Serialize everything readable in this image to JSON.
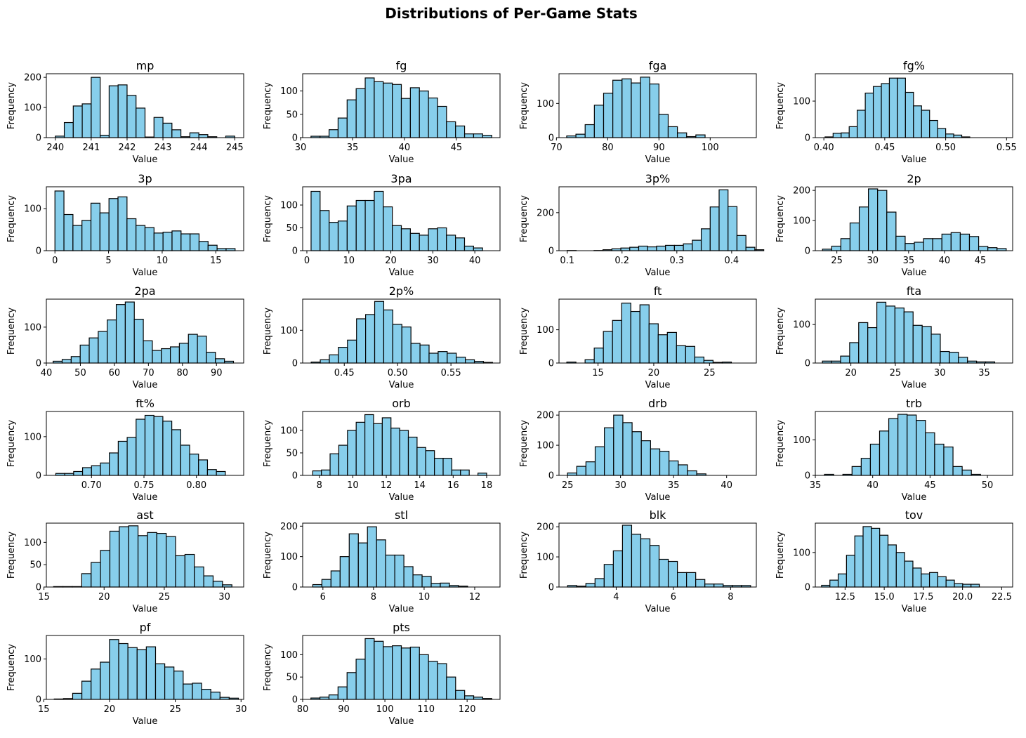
{
  "chart_data": {
    "title": "Distributions of Per-Game Stats",
    "type": "histogram-grid",
    "panels": [
      {
        "title": "mp",
        "xlabel": "Value",
        "ylabel": "Frequency",
        "xlim": [
          239.75,
          245.25
        ],
        "ylim": [
          0,
          212
        ],
        "xticks": [
          240,
          241,
          242,
          243,
          244,
          245
        ],
        "xtick_labels": [
          "240",
          "241",
          "242",
          "243",
          "244",
          "245"
        ],
        "yticks": [
          0,
          100,
          200
        ],
        "bin_start": 240.0,
        "bin_width": 0.25,
        "counts": [
          5,
          50,
          105,
          112,
          200,
          8,
          172,
          175,
          140,
          98,
          2,
          67,
          48,
          26,
          3,
          16,
          10,
          3,
          0,
          5
        ]
      },
      {
        "title": "fg",
        "xlabel": "Value",
        "ylabel": "Frequency",
        "xlim": [
          30.2,
          49.2
        ],
        "ylim": [
          0,
          137
        ],
        "xticks": [
          30,
          35,
          40,
          45
        ],
        "xtick_labels": [
          "30",
          "35",
          "40",
          "45"
        ],
        "yticks": [
          0,
          50,
          100
        ],
        "bin_start": 31.0,
        "bin_width": 0.87,
        "counts": [
          3,
          3,
          17,
          42,
          81,
          105,
          128,
          120,
          117,
          114,
          84,
          107,
          100,
          85,
          67,
          34,
          25,
          8,
          8,
          5
        ]
      },
      {
        "title": "fga",
        "xlabel": "Value",
        "ylabel": "Frequency",
        "xlim": [
          70.5,
          109
        ],
        "ylim": [
          0,
          187
        ],
        "xticks": [
          70,
          80,
          90,
          100
        ],
        "xtick_labels": [
          "70",
          "80",
          "90",
          "100"
        ],
        "yticks": [
          0,
          100
        ],
        "bin_start": 72.0,
        "bin_width": 1.8,
        "counts": [
          5,
          10,
          38,
          95,
          130,
          168,
          172,
          160,
          177,
          157,
          68,
          32,
          14,
          3,
          8,
          0,
          0,
          0,
          0,
          0
        ]
      },
      {
        "title": "fg%",
        "xlabel": "Value",
        "ylabel": "Frequency",
        "xlim": [
          0.393,
          0.555
        ],
        "ylim": [
          0,
          175
        ],
        "xticks": [
          0.4,
          0.45,
          0.5,
          0.55
        ],
        "xtick_labels": [
          "0.40",
          "0.45",
          "0.50",
          "0.55"
        ],
        "yticks": [
          0,
          100
        ],
        "bin_start": 0.401,
        "bin_width": 0.0066,
        "counts": [
          2,
          12,
          13,
          30,
          75,
          122,
          140,
          148,
          163,
          163,
          124,
          87,
          75,
          47,
          25,
          10,
          7,
          2,
          0,
          0
        ]
      },
      {
        "title": "3p",
        "xlabel": "Value",
        "ylabel": "Frequency",
        "xlim": [
          -0.8,
          17.6
        ],
        "ylim": [
          0,
          152
        ],
        "xticks": [
          0,
          5,
          10,
          15
        ],
        "xtick_labels": [
          "0",
          "5",
          "10",
          "15"
        ],
        "yticks": [
          0,
          100
        ],
        "bin_start": 0.0,
        "bin_width": 0.84,
        "counts": [
          142,
          86,
          60,
          72,
          113,
          90,
          124,
          128,
          76,
          60,
          55,
          42,
          44,
          47,
          40,
          40,
          22,
          13,
          5,
          5
        ]
      },
      {
        "title": "3pa",
        "xlabel": "Value",
        "ylabel": "Frequency",
        "xlim": [
          -1,
          46
        ],
        "ylim": [
          0,
          140
        ],
        "xticks": [
          0,
          10,
          20,
          30,
          40
        ],
        "xtick_labels": [
          "0",
          "10",
          "20",
          "30",
          "40"
        ],
        "yticks": [
          0,
          50,
          100
        ],
        "bin_start": 1.0,
        "bin_width": 2.15,
        "counts": [
          130,
          88,
          62,
          65,
          98,
          110,
          110,
          130,
          96,
          55,
          48,
          38,
          34,
          48,
          50,
          34,
          28,
          10,
          6,
          0
        ]
      },
      {
        "title": "3p%",
        "xlabel": "Value",
        "ylabel": "Frequency",
        "xlim": [
          0.085,
          0.445
        ],
        "ylim": [
          0,
          336
        ],
        "xticks": [
          0.1,
          0.2,
          0.3,
          0.4
        ],
        "xtick_labels": [
          "0.1",
          "0.2",
          "0.3",
          "0.4"
        ],
        "yticks": [
          0,
          200
        ],
        "bin_start": 0.1,
        "bin_width": 0.0163,
        "counts": [
          1,
          0,
          0,
          1,
          5,
          10,
          14,
          18,
          24,
          20,
          24,
          28,
          28,
          36,
          55,
          115,
          230,
          320,
          232,
          80,
          18,
          5
        ]
      },
      {
        "title": "2p",
        "xlabel": "Value",
        "ylabel": "Frequency",
        "xlim": [
          22,
          49.5
        ],
        "ylim": [
          0,
          212
        ],
        "xticks": [
          25,
          30,
          35,
          40,
          45
        ],
        "xtick_labels": [
          "25",
          "30",
          "35",
          "40",
          "45"
        ],
        "yticks": [
          0,
          100,
          200
        ],
        "bin_start": 23.0,
        "bin_width": 1.28,
        "counts": [
          5,
          15,
          40,
          92,
          145,
          205,
          200,
          128,
          48,
          24,
          28,
          40,
          40,
          55,
          60,
          55,
          47,
          14,
          10,
          7
        ]
      },
      {
        "title": "2pa",
        "xlabel": "Value",
        "ylabel": "Frequency",
        "xlim": [
          40,
          98
        ],
        "ylim": [
          0,
          178
        ],
        "xticks": [
          40,
          50,
          60,
          70,
          80,
          90
        ],
        "xtick_labels": [
          "40",
          "50",
          "60",
          "70",
          "80",
          "90"
        ],
        "yticks": [
          0,
          100
        ],
        "bin_start": 42.0,
        "bin_width": 2.65,
        "counts": [
          5,
          10,
          18,
          50,
          70,
          88,
          120,
          163,
          170,
          122,
          62,
          35,
          40,
          45,
          55,
          80,
          75,
          30,
          12,
          5
        ]
      },
      {
        "title": "2p%",
        "xlabel": "Value",
        "ylabel": "Frequency",
        "xlim": [
          0.411,
          0.596
        ],
        "ylim": [
          0,
          195
        ],
        "xticks": [
          0.45,
          0.5,
          0.55
        ],
        "xtick_labels": [
          "0.45",
          "0.50",
          "0.55"
        ],
        "yticks": [
          0,
          100
        ],
        "bin_start": 0.419,
        "bin_width": 0.0085,
        "counts": [
          3,
          10,
          25,
          48,
          70,
          135,
          148,
          188,
          162,
          118,
          110,
          60,
          55,
          30,
          35,
          30,
          18,
          10,
          5,
          2
        ]
      },
      {
        "title": "ft",
        "xlabel": "Value",
        "ylabel": "Frequency",
        "xlim": [
          11.5,
          29.2
        ],
        "ylim": [
          0,
          192
        ],
        "xticks": [
          15,
          20,
          25
        ],
        "xtick_labels": [
          "15",
          "20",
          "25"
        ],
        "yticks": [
          0,
          100
        ],
        "bin_start": 12.2,
        "bin_width": 0.82,
        "counts": [
          3,
          0,
          10,
          45,
          95,
          128,
          180,
          155,
          175,
          118,
          85,
          92,
          52,
          50,
          18,
          8,
          2,
          3,
          0,
          0
        ]
      },
      {
        "title": "fta",
        "xlabel": "Value",
        "ylabel": "Frequency",
        "xlim": [
          16,
          38.2
        ],
        "ylim": [
          0,
          166
        ],
        "xticks": [
          20,
          25,
          30,
          35
        ],
        "xtick_labels": [
          "20",
          "25",
          "30",
          "35"
        ],
        "yticks": [
          0,
          100
        ],
        "bin_start": 16.8,
        "bin_width": 1.02,
        "counts": [
          5,
          5,
          18,
          53,
          105,
          92,
          158,
          148,
          143,
          133,
          98,
          95,
          75,
          30,
          28,
          15,
          5,
          3,
          3,
          0
        ]
      },
      {
        "title": "ft%",
        "xlabel": "Value",
        "ylabel": "Frequency",
        "xlim": [
          0.657,
          0.845
        ],
        "ylim": [
          0,
          165
        ],
        "xticks": [
          0.7,
          0.75,
          0.8
        ],
        "xtick_labels": [
          "0.70",
          "0.75",
          "0.80"
        ],
        "yticks": [
          0,
          100
        ],
        "bin_start": 0.666,
        "bin_width": 0.0085,
        "counts": [
          5,
          5,
          10,
          20,
          25,
          32,
          58,
          88,
          98,
          145,
          155,
          152,
          140,
          118,
          78,
          55,
          40,
          15,
          10,
          0
        ]
      },
      {
        "title": "orb",
        "xlabel": "Value",
        "ylabel": "Frequency",
        "xlim": [
          7,
          18.8
        ],
        "ylim": [
          0,
          142
        ],
        "xticks": [
          8,
          10,
          12,
          14,
          16,
          18
        ],
        "xtick_labels": [
          "8",
          "10",
          "12",
          "14",
          "16",
          "18"
        ],
        "yticks": [
          0,
          50,
          100
        ],
        "bin_start": 7.6,
        "bin_width": 0.52,
        "counts": [
          10,
          12,
          48,
          67,
          100,
          118,
          135,
          115,
          128,
          105,
          100,
          85,
          62,
          55,
          38,
          38,
          12,
          12,
          0,
          5
        ]
      },
      {
        "title": "drb",
        "xlabel": "Value",
        "ylabel": "Frequency",
        "xlim": [
          24.2,
          42.8
        ],
        "ylim": [
          0,
          212
        ],
        "xticks": [
          25,
          30,
          35,
          40
        ],
        "xtick_labels": [
          "25",
          "30",
          "35",
          "40"
        ],
        "yticks": [
          0,
          100,
          200
        ],
        "bin_start": 25.0,
        "bin_width": 0.87,
        "counts": [
          8,
          30,
          45,
          95,
          158,
          200,
          175,
          145,
          115,
          88,
          80,
          48,
          35,
          15,
          5,
          0,
          0,
          0,
          0,
          0
        ]
      },
      {
        "title": "trb",
        "xlabel": "Value",
        "ylabel": "Frequency",
        "xlim": [
          35,
          52.2
        ],
        "ylim": [
          0,
          180
        ],
        "xticks": [
          35,
          40,
          45,
          50
        ],
        "xtick_labels": [
          "35",
          "40",
          "45",
          "50"
        ],
        "yticks": [
          0,
          100
        ],
        "bin_start": 35.8,
        "bin_width": 0.8,
        "counts": [
          3,
          0,
          3,
          25,
          48,
          88,
          125,
          160,
          172,
          170,
          155,
          120,
          88,
          80,
          25,
          15,
          3,
          0,
          0,
          0
        ]
      },
      {
        "title": "ast",
        "xlabel": "Value",
        "ylabel": "Frequency",
        "xlim": [
          15.2,
          31.6
        ],
        "ylim": [
          0,
          143
        ],
        "xticks": [
          15,
          20,
          25,
          30
        ],
        "xtick_labels": [
          "15",
          "20",
          "25",
          "30"
        ],
        "yticks": [
          0,
          50,
          100
        ],
        "bin_start": 15.8,
        "bin_width": 0.78,
        "counts": [
          1,
          1,
          1,
          30,
          55,
          82,
          125,
          135,
          137,
          115,
          122,
          120,
          113,
          70,
          73,
          45,
          25,
          13,
          5,
          0
        ]
      },
      {
        "title": "stl",
        "xlabel": "Value",
        "ylabel": "Frequency",
        "xlim": [
          5.2,
          13
        ],
        "ylim": [
          0,
          210
        ],
        "xticks": [
          6,
          8,
          10,
          12
        ],
        "xtick_labels": [
          "6",
          "8",
          "10",
          "12"
        ],
        "yticks": [
          0,
          100,
          200
        ],
        "bin_start": 5.6,
        "bin_width": 0.36,
        "counts": [
          8,
          25,
          53,
          100,
          175,
          145,
          198,
          155,
          105,
          105,
          67,
          40,
          35,
          12,
          13,
          5,
          3,
          0,
          0,
          0
        ]
      },
      {
        "title": "blk",
        "xlabel": "Value",
        "ylabel": "Frequency",
        "xlim": [
          2,
          8.9
        ],
        "ylim": [
          0,
          212
        ],
        "xticks": [
          4,
          6,
          8
        ],
        "xtick_labels": [
          "4",
          "6",
          "8"
        ],
        "yticks": [
          0,
          100,
          200
        ],
        "bin_start": 2.3,
        "bin_width": 0.32,
        "counts": [
          5,
          3,
          12,
          28,
          75,
          120,
          205,
          175,
          160,
          138,
          92,
          85,
          48,
          48,
          25,
          10,
          10,
          5,
          5,
          5
        ]
      },
      {
        "title": "tov",
        "xlabel": "Value",
        "ylabel": "Frequency",
        "xlim": [
          10.6,
          23.2
        ],
        "ylim": [
          0,
          185
        ],
        "xticks": [
          12.5,
          15.0,
          17.5,
          20.0,
          22.5
        ],
        "xtick_labels": [
          "12.5",
          "15.0",
          "17.5",
          "20.0",
          "22.5"
        ],
        "yticks": [
          0,
          100
        ],
        "bin_start": 11.0,
        "bin_width": 0.53,
        "counts": [
          5,
          20,
          38,
          92,
          148,
          175,
          170,
          150,
          122,
          100,
          75,
          55,
          38,
          42,
          30,
          20,
          10,
          8,
          8,
          0
        ]
      },
      {
        "title": "pf",
        "xlabel": "Value",
        "ylabel": "Frequency",
        "xlim": [
          15.2,
          30.2
        ],
        "ylim": [
          0,
          158
        ],
        "xticks": [
          15,
          20,
          25,
          30
        ],
        "xtick_labels": [
          "15",
          "20",
          "25",
          "30"
        ],
        "yticks": [
          0,
          100
        ],
        "bin_start": 15.8,
        "bin_width": 0.7,
        "counts": [
          1,
          2,
          15,
          45,
          75,
          92,
          148,
          138,
          128,
          123,
          130,
          88,
          80,
          70,
          38,
          40,
          25,
          18,
          5,
          3
        ]
      },
      {
        "title": "pts",
        "xlabel": "Value",
        "ylabel": "Frequency",
        "xlim": [
          80,
          128
        ],
        "ylim": [
          0,
          143
        ],
        "xticks": [
          80,
          90,
          100,
          110,
          120
        ],
        "xtick_labels": [
          "80",
          "90",
          "100",
          "110",
          "120"
        ],
        "yticks": [
          0,
          50,
          100
        ],
        "bin_start": 82.0,
        "bin_width": 2.2,
        "counts": [
          3,
          5,
          10,
          28,
          60,
          90,
          136,
          130,
          118,
          120,
          115,
          117,
          100,
          85,
          80,
          50,
          20,
          8,
          5,
          2
        ]
      }
    ]
  }
}
